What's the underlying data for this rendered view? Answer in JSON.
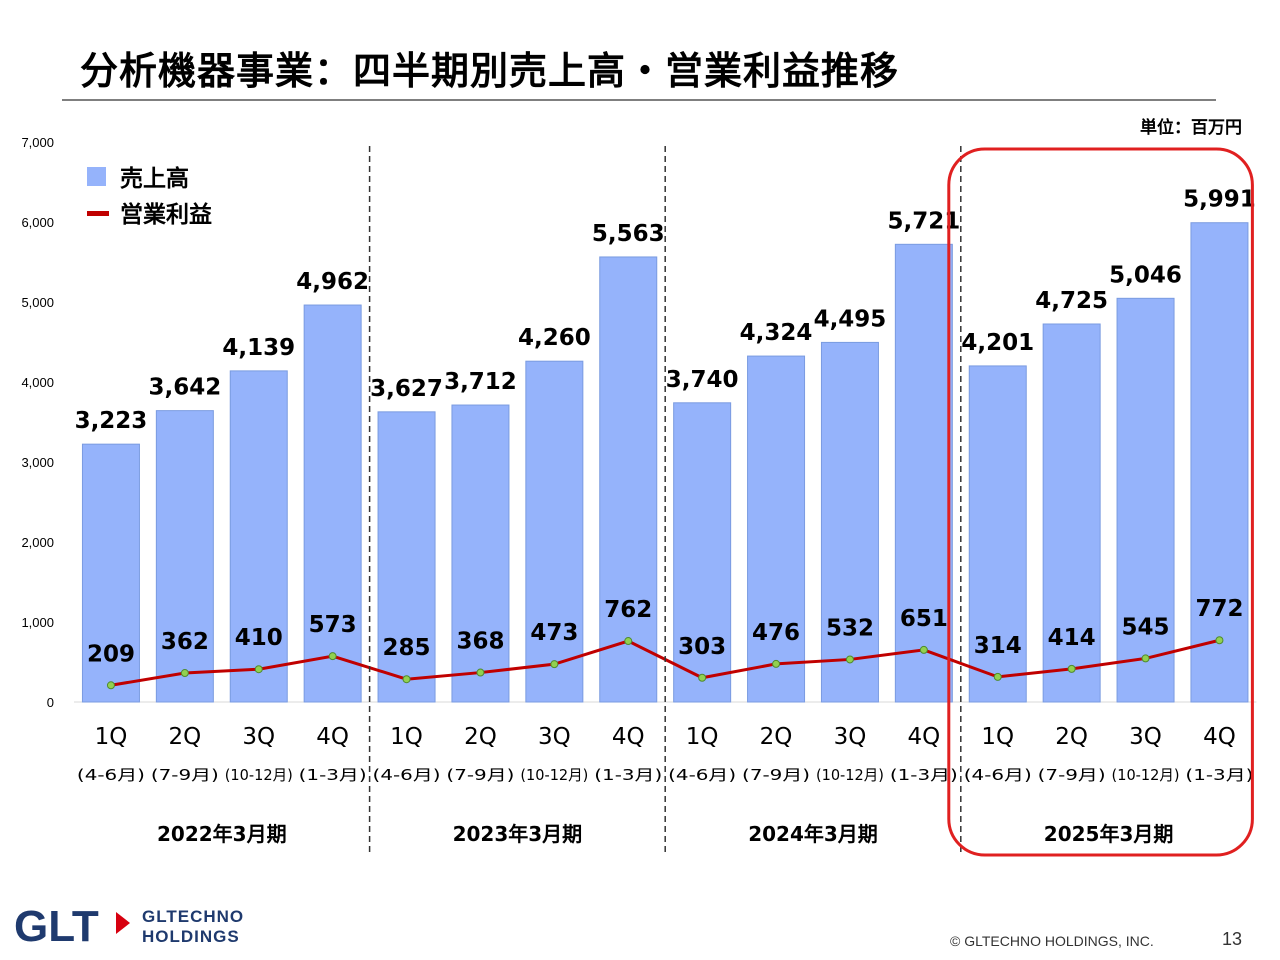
{
  "header": {
    "title": "分析機器事業：四半期別売上高・営業利益推移",
    "unit": "単位：百万円"
  },
  "chart_data": {
    "type": "bar",
    "ylim": [
      0,
      7000
    ],
    "y_ticks": [
      "0",
      "1,000",
      "2,000",
      "3,000",
      "4,000",
      "5,000",
      "6,000",
      "7,000"
    ],
    "legend_placement": "top-left",
    "grid": false,
    "categories": [
      "1Q",
      "2Q",
      "3Q",
      "4Q",
      "1Q",
      "2Q",
      "3Q",
      "4Q",
      "1Q",
      "2Q",
      "3Q",
      "4Q",
      "1Q",
      "2Q",
      "3Q",
      "4Q"
    ],
    "sub_categories": [
      "(4-6月)",
      "(7-9月)",
      "(10-12月)",
      "(1-3月)",
      "(4-6月)",
      "(7-9月)",
      "(10-12月)",
      "(1-3月)",
      "(4-6月)",
      "(7-9月)",
      "(10-12月)",
      "(1-3月)",
      "(4-6月)",
      "(7-9月)",
      "(10-12月)",
      "(1-3月)"
    ],
    "groups": [
      "2022年3月期",
      "2023年3月期",
      "2024年3月期",
      "2025年3月期"
    ],
    "highlighted_group": "2025年3月期",
    "series": [
      {
        "name": "売上高",
        "type": "bar",
        "color": "#95b3fb",
        "values": [
          3223,
          3642,
          4139,
          4962,
          3627,
          3712,
          4260,
          5563,
          3740,
          4324,
          4495,
          5721,
          4201,
          4725,
          5046,
          5991
        ],
        "labels": [
          "3,223",
          "3,642",
          "4,139",
          "4,962",
          "3,627",
          "3,712",
          "4,260",
          "5,563",
          "3,740",
          "4,324",
          "4,495",
          "5,721",
          "4,201",
          "4,725",
          "5,046",
          "5,991"
        ]
      },
      {
        "name": "営業利益",
        "type": "line",
        "color": "#c00000",
        "values": [
          209,
          362,
          410,
          573,
          285,
          368,
          473,
          762,
          303,
          476,
          532,
          651,
          314,
          414,
          545,
          772
        ],
        "labels": [
          "209",
          "362",
          "410",
          "573",
          "285",
          "368",
          "473",
          "762",
          "303",
          "476",
          "532",
          "651",
          "314",
          "414",
          "545",
          "772"
        ]
      }
    ]
  },
  "footer": {
    "logo_mark": "GLT",
    "logo_text_line1": "GLTECHNO",
    "logo_text_line2": "HOLDINGS",
    "copyright": "© GLTECHNO HOLDINGS, INC.",
    "page_number": "13"
  }
}
